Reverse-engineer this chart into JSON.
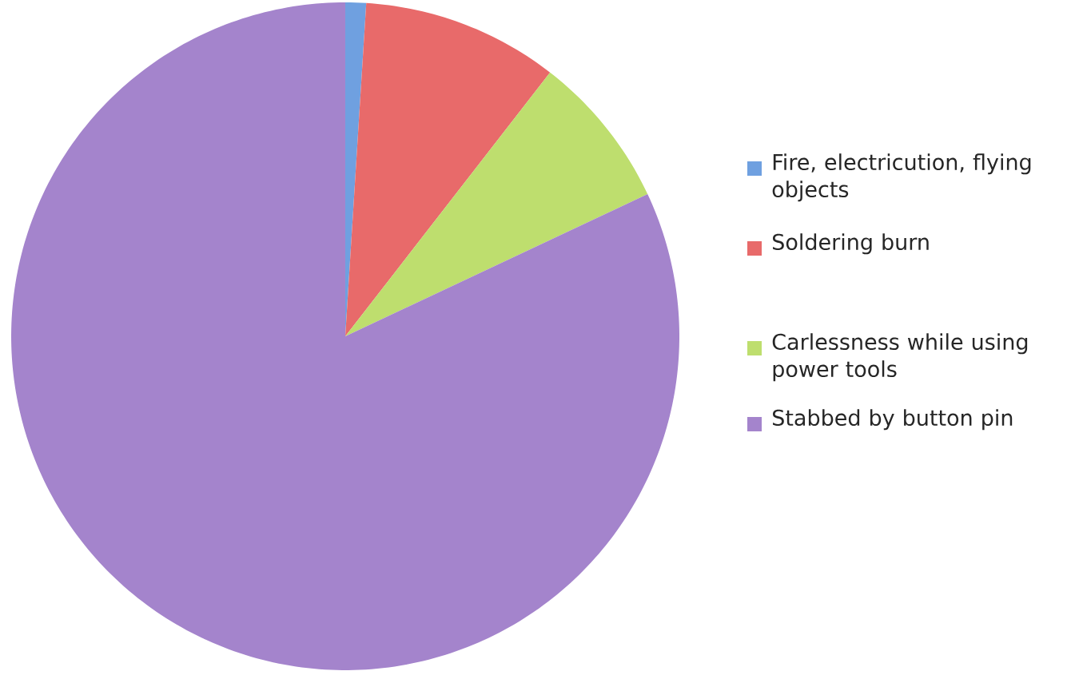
{
  "chart_data": {
    "type": "pie",
    "categories": [
      "Fire, electricution, flying objects",
      "Soldering burn",
      "Carlessness while using power tools",
      "Stabbed by button pin"
    ],
    "values": [
      1,
      9.5,
      7.5,
      82
    ],
    "colors": [
      "#6fa0e0",
      "#e86a6a",
      "#bede6e",
      "#a484cc"
    ],
    "legend": "right"
  }
}
